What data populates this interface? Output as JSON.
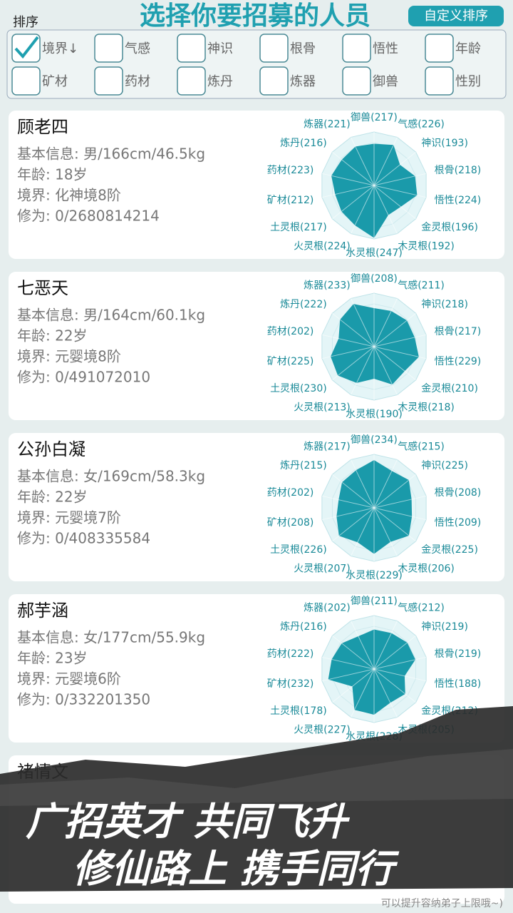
{
  "header": {
    "sort_label": "排序",
    "title": "选择你要招募的人员",
    "custom_sort_button": "自定义排序"
  },
  "filters": [
    {
      "label": "境界↓",
      "checked": true
    },
    {
      "label": "气感",
      "checked": false
    },
    {
      "label": "神识",
      "checked": false
    },
    {
      "label": "根骨",
      "checked": false
    },
    {
      "label": "悟性",
      "checked": false
    },
    {
      "label": "年龄",
      "checked": false
    },
    {
      "label": "矿材",
      "checked": false
    },
    {
      "label": "药材",
      "checked": false
    },
    {
      "label": "炼丹",
      "checked": false
    },
    {
      "label": "炼器",
      "checked": false
    },
    {
      "label": "御兽",
      "checked": false
    },
    {
      "label": "性别",
      "checked": false
    }
  ],
  "radar": {
    "type": "radar",
    "rlim": [
      100,
      250
    ],
    "color": "#1a9aaa"
  },
  "candidates": [
    {
      "name": "顾老四",
      "info": "基本信息: 男/166cm/46.5kg",
      "age": "年龄: 18岁",
      "realm": "境界: 化神境8阶",
      "cultivation": "修为: 0/2680814214",
      "values": [
        217,
        226,
        193,
        218,
        224,
        196,
        192,
        247,
        224,
        217,
        212,
        223,
        216,
        221
      ],
      "value_labels": [
        "御兽(217)",
        "气感(226)",
        "神识(193)",
        "根骨(218)",
        "悟性(224)",
        "金灵根(196)",
        "木灵根(192)",
        "水灵根(247)",
        "火灵根(224)",
        "土灵根(217)",
        "矿材(212)",
        "药材(223)",
        "炼丹(216)",
        "炼器(221)"
      ]
    },
    {
      "name": "七恶天",
      "info": "基本信息: 男/164cm/60.1kg",
      "age": "年龄: 22岁",
      "realm": "境界: 元婴境8阶",
      "cultivation": "修为: 0/491072010",
      "values": [
        208,
        211,
        218,
        217,
        229,
        210,
        218,
        190,
        213,
        230,
        225,
        202,
        222,
        233
      ],
      "value_labels": [
        "御兽(208)",
        "气感(211)",
        "神识(218)",
        "根骨(217)",
        "悟性(229)",
        "金灵根(210)",
        "木灵根(218)",
        "水灵根(190)",
        "火灵根(213)",
        "土灵根(230)",
        "矿材(225)",
        "药材(202)",
        "炼丹(222)",
        "炼器(233)"
      ]
    },
    {
      "name": "公孙白凝",
      "info": "基本信息: 女/169cm/58.3kg",
      "age": "年龄: 22岁",
      "realm": "境界: 元婴境7阶",
      "cultivation": "修为: 0/408335584",
      "values": [
        234,
        215,
        225,
        208,
        209,
        225,
        206,
        229,
        207,
        226,
        208,
        202,
        215,
        217
      ],
      "value_labels": [
        "御兽(234)",
        "气感(215)",
        "神识(225)",
        "根骨(208)",
        "悟性(209)",
        "金灵根(225)",
        "木灵根(206)",
        "水灵根(229)",
        "火灵根(207)",
        "土灵根(226)",
        "矿材(208)",
        "药材(202)",
        "炼丹(215)",
        "炼器(217)"
      ]
    },
    {
      "name": "郝芋涵",
      "info": "基本信息: 女/177cm/55.9kg",
      "age": "年龄: 23岁",
      "realm": "境界: 元婴境6阶",
      "cultivation": "修为: 0/332201350",
      "values": [
        211,
        212,
        219,
        219,
        188,
        212,
        205,
        228,
        227,
        178,
        232,
        222,
        216,
        202
      ],
      "value_labels": [
        "御兽(211)",
        "气感(212)",
        "神识(219)",
        "根骨(219)",
        "悟性(188)",
        "金灵根(212)",
        "木灵根(205)",
        "水灵根(228)",
        "火灵根(227)",
        "土灵根(178)",
        "矿材(232)",
        "药材(222)",
        "炼丹(216)",
        "炼器(202)"
      ]
    },
    {
      "name": "褚情文"
    }
  ],
  "banner": {
    "line1": "广招英才 共同飞升",
    "line2": "修仙路上 携手同行"
  },
  "footer_note": "可以提升容纳弟子上限哦~)"
}
